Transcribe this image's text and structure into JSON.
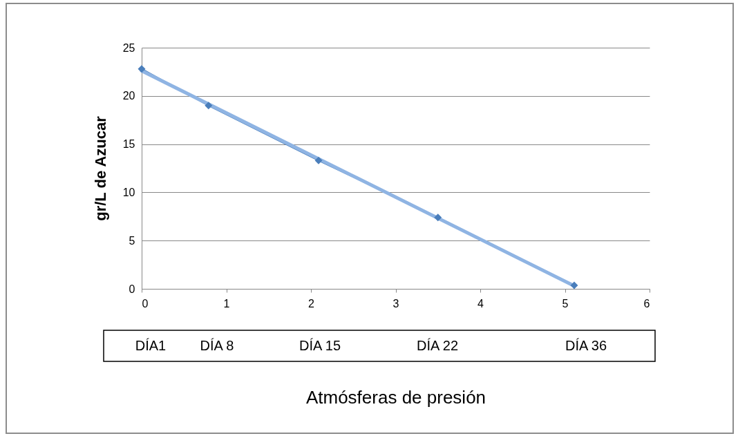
{
  "chart_data": {
    "type": "line",
    "xlabel": "Atmósferas de presión",
    "ylabel": "gr/L de Azucar",
    "x": [
      0,
      0.79,
      2.09,
      3.5,
      5.11
    ],
    "series": [
      {
        "color": "#4a7ebb",
        "values": [
          22.8,
          19,
          13.3,
          7.4,
          0.36
        ]
      },
      {
        "type": "line",
        "marker": "none",
        "color": "#8fb4e3",
        "x": [
          0,
          5.11
        ],
        "values": [
          22.6,
          0.3
        ]
      }
    ],
    "xlim": [
      0,
      6
    ],
    "xticks": [
      0,
      1,
      2,
      3,
      4,
      5,
      6
    ],
    "ylim": [
      0,
      25
    ],
    "yticks": [
      0,
      5,
      10,
      15,
      20,
      25
    ],
    "grid": "y",
    "marker": "diamond",
    "annotations": [
      "DÍA1",
      "DÍA 8",
      "DÍA 15",
      "DÍA 22",
      "DÍA 36"
    ]
  }
}
